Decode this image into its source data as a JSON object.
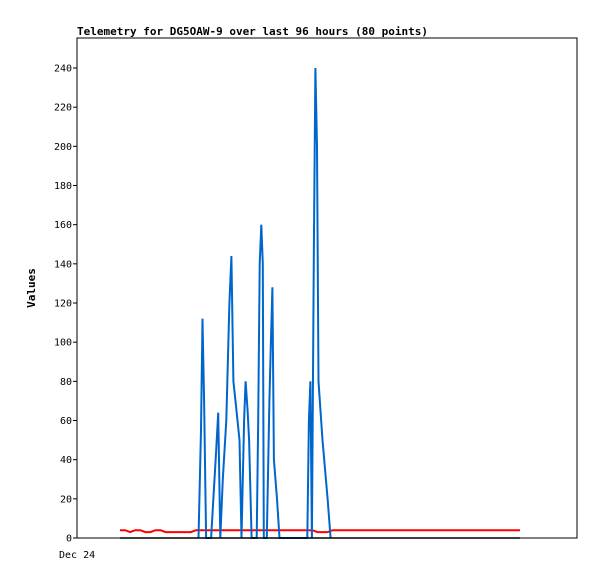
{
  "chart_data": {
    "type": "line",
    "title": "Telemetry for DG5OAW-9 over last 96 hours (80 points)",
    "xlabel": "",
    "ylabel": "Values",
    "x_tick_labels": [
      "Dec 24"
    ],
    "ylim": [
      0,
      250
    ],
    "y_ticks": [
      0,
      20,
      40,
      60,
      80,
      100,
      120,
      140,
      160,
      180,
      200,
      220,
      240
    ],
    "grid": false,
    "legend": "none",
    "x": [
      0,
      1,
      2,
      3,
      4,
      5,
      6,
      7,
      8,
      9,
      10,
      11,
      12,
      13,
      14,
      15,
      16,
      17,
      18,
      19,
      20,
      21,
      22,
      23,
      24,
      25,
      26,
      27,
      28,
      29,
      30,
      31,
      32,
      33,
      34,
      35,
      36,
      37,
      38,
      39,
      40,
      41,
      42,
      43,
      44,
      45,
      46,
      47,
      48,
      49,
      50,
      51,
      52,
      53,
      54,
      55,
      56,
      57,
      58,
      59,
      60,
      61,
      62,
      63,
      64,
      65,
      66,
      67,
      68,
      69,
      70,
      71,
      72,
      73,
      74,
      75,
      76,
      77,
      78,
      79
    ],
    "series": [
      {
        "color": "#ff0000",
        "values": [
          4,
          4,
          3,
          4,
          4,
          3,
          3,
          4,
          4,
          3,
          3,
          3,
          3,
          3,
          3,
          4,
          4,
          4,
          4,
          4,
          4,
          4,
          4,
          4,
          4,
          4,
          4,
          4,
          4,
          4,
          4,
          4,
          4,
          4,
          4,
          4,
          4,
          4,
          4,
          3,
          3,
          3,
          4,
          4,
          4,
          4,
          4,
          4,
          4,
          4,
          4,
          4,
          4,
          4,
          4,
          4,
          4,
          4,
          4,
          4,
          4,
          4,
          4,
          4,
          4,
          4,
          4,
          4,
          4,
          4,
          4,
          4,
          4,
          4,
          4,
          4,
          4,
          4,
          4,
          4
        ]
      },
      {
        "color": "#0066cc",
        "points": [
          [
            15.5,
            0
          ],
          [
            16,
            55
          ],
          [
            16.3,
            112
          ],
          [
            16.6,
            70
          ],
          [
            17,
            0
          ],
          [
            18,
            0
          ],
          [
            19,
            45
          ],
          [
            19.4,
            64
          ],
          [
            19.8,
            0
          ],
          [
            20.3,
            30
          ],
          [
            21,
            60
          ],
          [
            21.6,
            120
          ],
          [
            22,
            144
          ],
          [
            22.4,
            80
          ],
          [
            23,
            65
          ],
          [
            23.6,
            50
          ],
          [
            24,
            0
          ],
          [
            24.5,
            60
          ],
          [
            24.8,
            80
          ],
          [
            25.2,
            65
          ],
          [
            25.5,
            50
          ],
          [
            26,
            0
          ],
          [
            27,
            0
          ],
          [
            27.3,
            60
          ],
          [
            27.6,
            140
          ],
          [
            27.9,
            160
          ],
          [
            28.2,
            140
          ],
          [
            28.4,
            0
          ],
          [
            29,
            0
          ],
          [
            29.5,
            70
          ],
          [
            29.8,
            100
          ],
          [
            30.1,
            128
          ],
          [
            30.4,
            40
          ],
          [
            31,
            20
          ],
          [
            31.5,
            0
          ],
          [
            37,
            0
          ],
          [
            37.3,
            60
          ],
          [
            37.6,
            80
          ],
          [
            37.9,
            0
          ],
          [
            38.3,
            150
          ],
          [
            38.6,
            240
          ],
          [
            38.9,
            200
          ],
          [
            39.2,
            80
          ],
          [
            40,
            50
          ],
          [
            41,
            20
          ],
          [
            41.6,
            0
          ]
        ]
      },
      {
        "color": "#000000",
        "values": [
          0,
          0,
          0,
          0,
          0,
          0,
          0,
          0,
          0,
          0,
          0,
          0,
          0,
          0,
          0,
          0,
          0,
          0,
          0,
          0,
          0,
          0,
          0,
          0,
          0,
          0,
          0,
          0,
          0,
          0,
          0,
          0,
          0,
          0,
          0,
          0,
          0,
          0,
          0,
          0,
          0,
          0,
          0,
          0,
          0,
          0,
          0,
          0,
          0,
          0,
          0,
          0,
          0,
          0,
          0,
          0,
          0,
          0,
          0,
          0,
          0,
          0,
          0,
          0,
          0,
          0,
          0,
          0,
          0,
          0,
          0,
          0,
          0,
          0,
          0,
          0,
          0,
          0,
          0,
          0
        ]
      }
    ]
  }
}
